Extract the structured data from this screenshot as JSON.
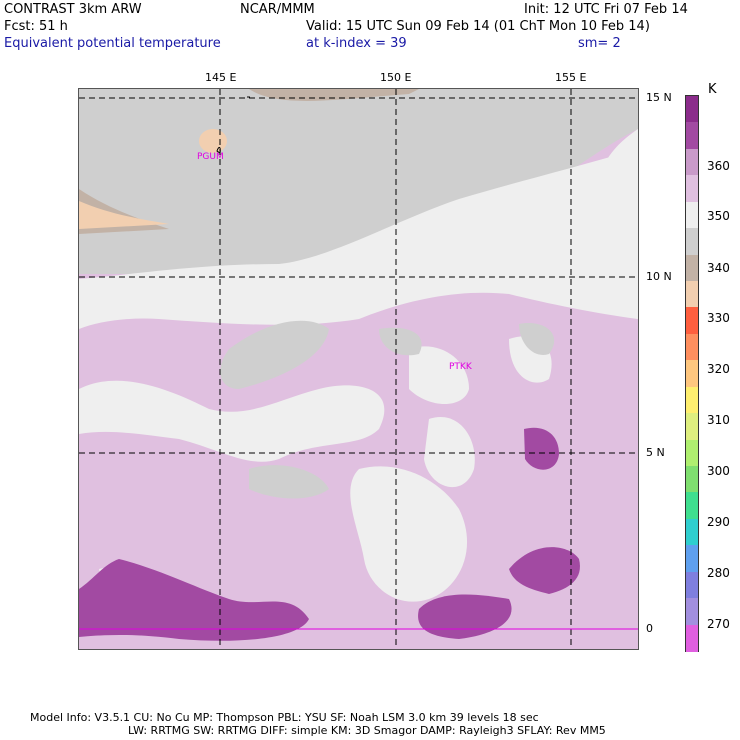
{
  "header": {
    "model_line": "CONTRAST  3km ARW",
    "org": "NCAR/MMM",
    "init": "Init: 12 UTC Fri 07 Feb 14",
    "fcst": "Fcst:   51 h",
    "valid": "Valid: 15 UTC Sun 09 Feb 14 (01 ChT Mon 10 Feb 14)",
    "field": "Equivalent potential temperature",
    "level": "at k-index =  39",
    "smooth": "sm= 2"
  },
  "map": {
    "lon_labels": [
      "145 E",
      "150 E",
      "155 E"
    ],
    "lat_labels": [
      "15 N",
      "10 N",
      "5 N",
      "0"
    ],
    "stations": [
      "PGUM",
      "PTKK"
    ]
  },
  "colorbar": {
    "unit": "K",
    "labels": [
      "360",
      "350",
      "340",
      "330",
      "320",
      "310",
      "300",
      "290",
      "280",
      "270"
    ],
    "colors": [
      "#8b2c8b",
      "#a24aa2",
      "#c99ac9",
      "#e0c0e0",
      "#efefef",
      "#cfcfcf",
      "#c2b2a6",
      "#f2cfb0",
      "#ff5f3f",
      "#ff8f5f",
      "#ffc77f",
      "#ffef6f",
      "#dfef7f",
      "#afef6f",
      "#7fdf6f",
      "#3fdf8f",
      "#2fcfcf",
      "#5fa0ef",
      "#7f7fdf",
      "#a28fdf",
      "#e05fe0"
    ]
  },
  "footer": {
    "line1": "Model Info: V3.5.1   CU: No Cu    MP: Thompson    PBL: YSU       SF: Noah LSM     3.0 km   39 levels   18 sec",
    "line2": "LW: RRTMG   SW: RRTMG  DIFF: simple KM: 3D Smagor DAMP: Rayleigh3  SFLAY: Rev MM5"
  }
}
